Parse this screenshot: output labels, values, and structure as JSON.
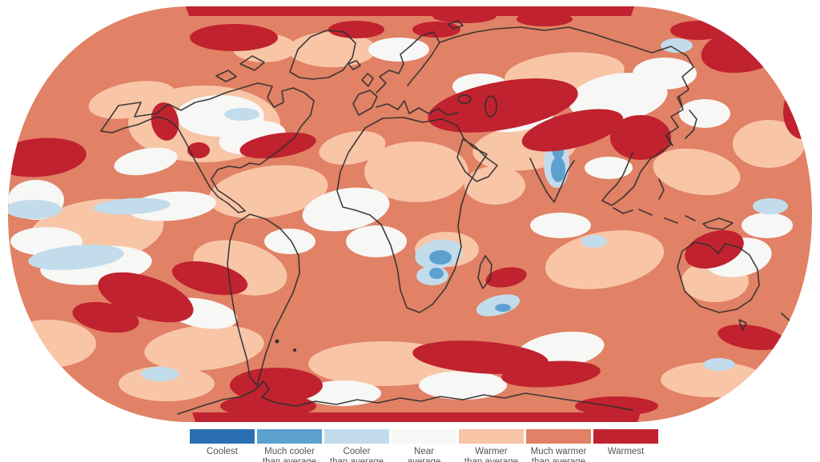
{
  "legend": {
    "items": [
      {
        "label_line1": "Coolest",
        "label_line2": "",
        "color": "#2a6fb2"
      },
      {
        "label_line1": "Much cooler",
        "label_line2": "than average",
        "color": "#5ca0d0"
      },
      {
        "label_line1": "Cooler",
        "label_line2": "than average",
        "color": "#c3dcec"
      },
      {
        "label_line1": "Near",
        "label_line2": "average",
        "color": "#f7f7f5"
      },
      {
        "label_line1": "Warmer",
        "label_line2": "than average",
        "color": "#f8c5a7"
      },
      {
        "label_line1": "Much warmer",
        "label_line2": "than average",
        "color": "#e18165"
      },
      {
        "label_line1": "Warmest",
        "label_line2": "",
        "color": "#c0222f"
      }
    ]
  },
  "map": {
    "description": "World map in Robinson projection shaded by temperature percentile category; dominated by warmer-than-average reds with scattered near-average white and small cooler blue pockets",
    "projection": "robinson",
    "outline_color": "#2f2f2f",
    "background": "#ffffff"
  },
  "chart_data": {
    "type": "heatmap",
    "subtype": "choropleth-world-temperature-percentiles",
    "title": "",
    "legend_position": "bottom",
    "categories": [
      "Coolest",
      "Much cooler than average",
      "Cooler than average",
      "Near average",
      "Warmer than average",
      "Much warmer than average",
      "Warmest"
    ],
    "colors": [
      "#2a6fb2",
      "#5ca0d0",
      "#c3dcec",
      "#f7f7f5",
      "#f8c5a7",
      "#e18165",
      "#c0222f"
    ],
    "observed_pattern": [
      {
        "region": "Top (Arctic) edge band",
        "category": "Warmest"
      },
      {
        "region": "Siberia / Mongolia band",
        "category": "Warmest"
      },
      {
        "region": "Eastern China",
        "category": "Warmest"
      },
      {
        "region": "Northeast Pacific near left edge",
        "category": "Warmest"
      },
      {
        "region": "North Atlantic off eastern North America",
        "category": "Warmest"
      },
      {
        "region": "South-central Pacific blobs",
        "category": "Warmest"
      },
      {
        "region": "South Atlantic / southern Indian Ocean band",
        "category": "Warmest"
      },
      {
        "region": "Antarctic Peninsula sector and bottom edge band",
        "category": "Warmest"
      },
      {
        "region": "Coral Sea northeast of Australia",
        "category": "Warmest"
      },
      {
        "region": "Most oceans and continents",
        "category": "Much warmer than average"
      },
      {
        "region": "Continental interiors (North America, central Asia, Australia, Greenland)",
        "category": "Warmer than average"
      },
      {
        "region": "Scattered mid-ocean and central-US patches",
        "category": "Near average"
      },
      {
        "region": "Northern India",
        "category": "Cooler than average"
      },
      {
        "region": "South-central Africa",
        "category": "Cooler than average"
      },
      {
        "region": "Eastern tropical Pacific strips and scattered Southern Ocean patches",
        "category": "Cooler than average"
      }
    ]
  }
}
